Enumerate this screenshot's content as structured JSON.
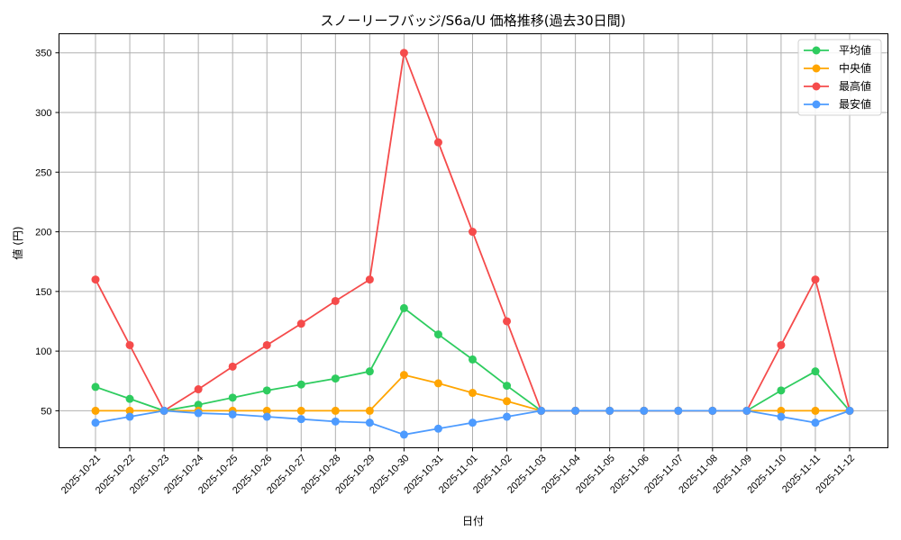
{
  "chart_data": {
    "type": "line",
    "title": "スノーリーフバッジ/S6a/U 価格推移(過去30日間)",
    "xlabel": "日付",
    "ylabel": "値 (円)",
    "ylim": [
      19,
      366
    ],
    "yticks": [
      50,
      100,
      150,
      200,
      250,
      300,
      350
    ],
    "grid": true,
    "legend_position": "upper right",
    "categories": [
      "2025-10-21",
      "2025-10-22",
      "2025-10-23",
      "2025-10-24",
      "2025-10-25",
      "2025-10-26",
      "2025-10-27",
      "2025-10-28",
      "2025-10-29",
      "2025-10-30",
      "2025-10-31",
      "2025-11-01",
      "2025-11-02",
      "2025-11-03",
      "2025-11-04",
      "2025-11-05",
      "2025-11-06",
      "2025-11-07",
      "2025-11-08",
      "2025-11-09",
      "2025-11-10",
      "2025-11-11",
      "2025-11-12"
    ],
    "series": [
      {
        "name": "平均値",
        "color": "#2ecc5f",
        "values": [
          70,
          60,
          50,
          55,
          61,
          67,
          72,
          77,
          83,
          136,
          114,
          93,
          71,
          50,
          50,
          50,
          50,
          50,
          50,
          50,
          67,
          83,
          50
        ]
      },
      {
        "name": "中央値",
        "color": "#ffa500",
        "values": [
          50,
          50,
          50,
          50,
          50,
          50,
          50,
          50,
          50,
          80,
          73,
          65,
          58,
          50,
          50,
          50,
          50,
          50,
          50,
          50,
          50,
          50,
          50
        ]
      },
      {
        "name": "最高値",
        "color": "#f54b4b",
        "values": [
          160,
          105,
          50,
          68,
          87,
          105,
          123,
          142,
          160,
          350,
          275,
          200,
          125,
          50,
          50,
          50,
          50,
          50,
          50,
          50,
          105,
          160,
          50
        ]
      },
      {
        "name": "最安値",
        "color": "#4d9bff",
        "values": [
          40,
          45,
          50,
          48,
          47,
          45,
          43,
          41,
          40,
          30,
          35,
          40,
          45,
          50,
          50,
          50,
          50,
          50,
          50,
          50,
          45,
          40,
          50
        ]
      }
    ]
  }
}
